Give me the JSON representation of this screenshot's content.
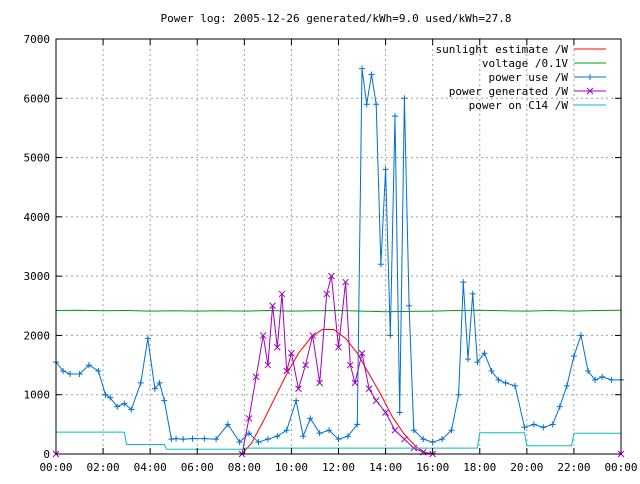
{
  "chart_data": {
    "type": "line",
    "title": "Power log: 2005-12-26 generated/kWh=9.0 used/kWh=27.8",
    "xlabel": "",
    "ylabel": "",
    "xlim": [
      0,
      24
    ],
    "ylim": [
      0,
      7000
    ],
    "x_ticks": [
      "00:00",
      "02:00",
      "04:00",
      "06:00",
      "08:00",
      "10:00",
      "12:00",
      "14:00",
      "16:00",
      "18:00",
      "20:00",
      "22:00",
      "00:00"
    ],
    "y_ticks": [
      "0",
      "1000",
      "2000",
      "3000",
      "4000",
      "5000",
      "6000",
      "7000"
    ],
    "grid": true,
    "legend_position": "top-right",
    "series": [
      {
        "name": "sunlight estimate /W",
        "color": "#ff0000",
        "marker": "none",
        "x": [
          0,
          7.9,
          8.3,
          8.8,
          9.3,
          9.8,
          10.3,
          10.8,
          11.3,
          11.8,
          12.3,
          12.8,
          13.3,
          13.8,
          14.3,
          14.8,
          15.3,
          15.7,
          16.2,
          24
        ],
        "y": [
          0,
          0,
          180,
          550,
          950,
          1350,
          1700,
          1950,
          2100,
          2100,
          1950,
          1700,
          1350,
          1000,
          620,
          330,
          120,
          20,
          0,
          0
        ]
      },
      {
        "name": "voltage /0.1V",
        "color": "#00a000",
        "marker": "none",
        "x": [
          0,
          1,
          2,
          3,
          4,
          5,
          6,
          7,
          8,
          9,
          10,
          11,
          12,
          13,
          14,
          15,
          16,
          17,
          18,
          19,
          20,
          21,
          22,
          23,
          24
        ],
        "y": [
          2420,
          2425,
          2415,
          2420,
          2410,
          2415,
          2410,
          2415,
          2410,
          2420,
          2410,
          2415,
          2420,
          2410,
          2400,
          2405,
          2410,
          2420,
          2425,
          2415,
          2410,
          2420,
          2410,
          2420,
          2425
        ]
      },
      {
        "name": "power use /W",
        "color": "#0070d0",
        "marker": "plus",
        "x": [
          0,
          0.3,
          0.6,
          1.0,
          1.4,
          1.8,
          2.1,
          2.3,
          2.6,
          2.9,
          3.2,
          3.6,
          3.9,
          4.2,
          4.4,
          4.6,
          4.9,
          5.1,
          5.4,
          5.8,
          6.3,
          6.8,
          7.3,
          7.8,
          8.2,
          8.6,
          9.0,
          9.4,
          9.8,
          10.2,
          10.5,
          10.8,
          11.2,
          11.6,
          12.0,
          12.4,
          12.8,
          13.0,
          13.2,
          13.4,
          13.6,
          13.8,
          14.0,
          14.2,
          14.4,
          14.6,
          14.8,
          15.0,
          15.2,
          15.6,
          16.0,
          16.4,
          16.8,
          17.1,
          17.3,
          17.5,
          17.7,
          17.9,
          18.2,
          18.5,
          18.8,
          19.1,
          19.5,
          19.9,
          20.3,
          20.7,
          21.1,
          21.4,
          21.7,
          22.0,
          22.3,
          22.6,
          22.9,
          23.2,
          23.6,
          24.0
        ],
        "y": [
          1550,
          1400,
          1350,
          1350,
          1500,
          1400,
          1000,
          950,
          800,
          850,
          750,
          1200,
          1950,
          1100,
          1200,
          900,
          250,
          260,
          250,
          260,
          260,
          250,
          500,
          200,
          350,
          200,
          250,
          300,
          400,
          900,
          300,
          600,
          350,
          400,
          250,
          300,
          500,
          6500,
          5900,
          6400,
          5900,
          3200,
          4800,
          2000,
          5700,
          700,
          6000,
          2500,
          400,
          250,
          200,
          250,
          400,
          1000,
          2900,
          1600,
          2700,
          1550,
          1700,
          1400,
          1250,
          1200,
          1150,
          450,
          500,
          450,
          500,
          800,
          1150,
          1650,
          2000,
          1400,
          1250,
          1300,
          1250,
          1250
        ]
      },
      {
        "name": "power generated /W",
        "color": "#a000c0",
        "marker": "x",
        "x": [
          0,
          7.9,
          8.2,
          8.5,
          8.8,
          9.0,
          9.2,
          9.4,
          9.6,
          9.8,
          10.0,
          10.3,
          10.6,
          10.9,
          11.2,
          11.5,
          11.7,
          12.0,
          12.3,
          12.5,
          12.7,
          13.0,
          13.3,
          13.6,
          14.0,
          14.4,
          14.8,
          15.2,
          15.6,
          16.0,
          24
        ],
        "y": [
          0,
          0,
          600,
          1300,
          2000,
          1500,
          2500,
          1800,
          2700,
          1400,
          1700,
          1100,
          1500,
          2000,
          1200,
          2700,
          3000,
          1800,
          2900,
          1500,
          1200,
          1700,
          1100,
          900,
          700,
          400,
          250,
          100,
          30,
          0,
          0
        ]
      },
      {
        "name": "power on C14 /W",
        "color": "#00c0c0",
        "marker": "none",
        "x": [
          0,
          2.9,
          3.0,
          4.6,
          4.7,
          7.9,
          8.0,
          17.9,
          18.0,
          19.9,
          20.0,
          21.9,
          22.0,
          24
        ],
        "y": [
          370,
          370,
          160,
          160,
          80,
          80,
          100,
          100,
          360,
          360,
          140,
          140,
          350,
          350
        ]
      }
    ]
  }
}
